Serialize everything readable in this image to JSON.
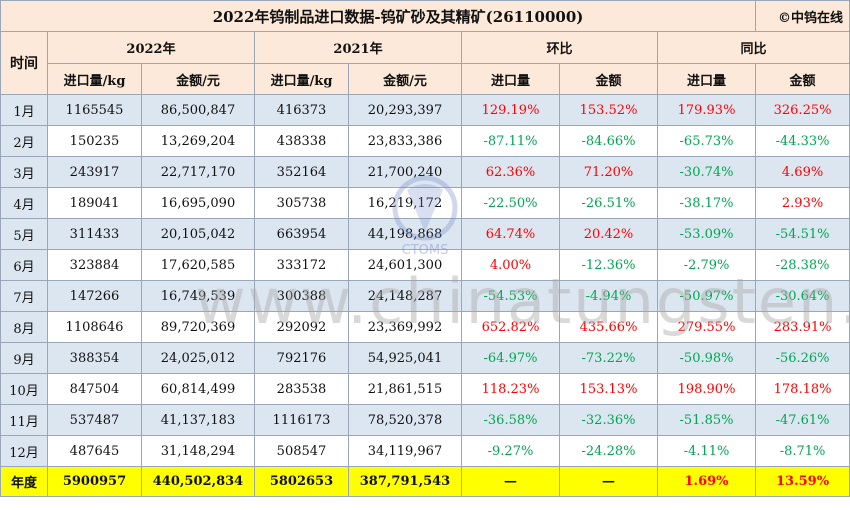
{
  "title": "2022年钨制品进口数据-钨矿砂及其精矿(26110000)",
  "brand": "©中钨在线",
  "header": {
    "time": "时间",
    "year_2022": "2022年",
    "year_2021": "2021年",
    "mom": "环比",
    "yoy": "同比",
    "import_qty": "进口量/kg",
    "amount_yuan": "金额/元",
    "import_qty_plain": "进口量",
    "amount_plain": "金额"
  },
  "rows": [
    {
      "month": "1月",
      "q2022": "1165545",
      "a2022": "86,500,847",
      "q2021": "416373",
      "a2021": "20,293,397",
      "mom_q": "129.19%",
      "mom_a": "153.52%",
      "yoy_q": "179.93%",
      "yoy_a": "326.25%"
    },
    {
      "month": "2月",
      "q2022": "150235",
      "a2022": "13,269,204",
      "q2021": "438338",
      "a2021": "23,833,386",
      "mom_q": "-87.11%",
      "mom_a": "-84.66%",
      "yoy_q": "-65.73%",
      "yoy_a": "-44.33%"
    },
    {
      "month": "3月",
      "q2022": "243917",
      "a2022": "22,717,170",
      "q2021": "352164",
      "a2021": "21,700,240",
      "mom_q": "62.36%",
      "mom_a": "71.20%",
      "yoy_q": "-30.74%",
      "yoy_a": "4.69%"
    },
    {
      "month": "4月",
      "q2022": "189041",
      "a2022": "16,695,090",
      "q2021": "305738",
      "a2021": "16,219,172",
      "mom_q": "-22.50%",
      "mom_a": "-26.51%",
      "yoy_q": "-38.17%",
      "yoy_a": "2.93%"
    },
    {
      "month": "5月",
      "q2022": "311433",
      "a2022": "20,105,042",
      "q2021": "663954",
      "a2021": "44,198,868",
      "mom_q": "64.74%",
      "mom_a": "20.42%",
      "yoy_q": "-53.09%",
      "yoy_a": "-54.51%"
    },
    {
      "month": "6月",
      "q2022": "323884",
      "a2022": "17,620,585",
      "q2021": "333172",
      "a2021": "24,601,300",
      "mom_q": "4.00%",
      "mom_a": "-12.36%",
      "yoy_q": "-2.79%",
      "yoy_a": "-28.38%"
    },
    {
      "month": "7月",
      "q2022": "147266",
      "a2022": "16,749,539",
      "q2021": "300388",
      "a2021": "24,148,287",
      "mom_q": "-54.53%",
      "mom_a": "-4.94%",
      "yoy_q": "-50.97%",
      "yoy_a": "-30.64%"
    },
    {
      "month": "8月",
      "q2022": "1108646",
      "a2022": "89,720,369",
      "q2021": "292092",
      "a2021": "23,369,992",
      "mom_q": "652.82%",
      "mom_a": "435.66%",
      "yoy_q": "279.55%",
      "yoy_a": "283.91%"
    },
    {
      "month": "9月",
      "q2022": "388354",
      "a2022": "24,025,012",
      "q2021": "792176",
      "a2021": "54,925,041",
      "mom_q": "-64.97%",
      "mom_a": "-73.22%",
      "yoy_q": "-50.98%",
      "yoy_a": "-56.26%"
    },
    {
      "month": "10月",
      "q2022": "847504",
      "a2022": "60,814,499",
      "q2021": "283538",
      "a2021": "21,861,515",
      "mom_q": "118.23%",
      "mom_a": "153.13%",
      "yoy_q": "198.90%",
      "yoy_a": "178.18%"
    },
    {
      "month": "11月",
      "q2022": "537487",
      "a2022": "41,137,183",
      "q2021": "1116173",
      "a2021": "78,520,378",
      "mom_q": "-36.58%",
      "mom_a": "-32.36%",
      "yoy_q": "-51.85%",
      "yoy_a": "-47.61%"
    },
    {
      "month": "12月",
      "q2022": "487645",
      "a2022": "31,148,294",
      "q2021": "508547",
      "a2021": "34,119,967",
      "mom_q": "-9.27%",
      "mom_a": "-24.28%",
      "yoy_q": "-4.11%",
      "yoy_a": "-8.71%"
    }
  ],
  "total": {
    "month": "年度",
    "q2022": "5900957",
    "a2022": "440,502,834",
    "q2021": "5802653",
    "a2021": "387,791,543",
    "mom_q": "—",
    "mom_a": "—",
    "yoy_q": "1.69%",
    "yoy_a": "13.59%"
  },
  "watermark": "www.chinatungsten.com",
  "logo_text": "CTOMS",
  "colors": {
    "negative": "#00a651",
    "positive": "#ff0000",
    "header_bg": "#fde9d9",
    "stripe_bg": "#dce6f1",
    "total_bg": "#ffff00"
  }
}
